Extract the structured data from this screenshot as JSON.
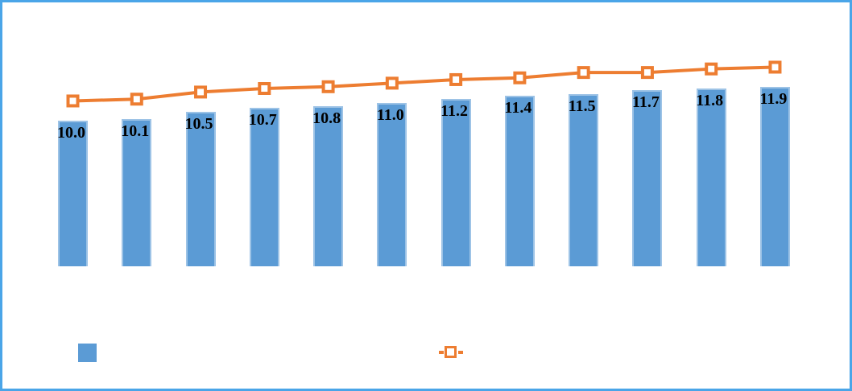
{
  "frame": {
    "background": "#ffffff",
    "border_color": "#4aa5e8"
  },
  "chart_data": {
    "type": "bar",
    "subtype": "bar-with-line-overlay",
    "title": "",
    "xlabel": "",
    "ylabel": "",
    "axes_visible": false,
    "gridlines": false,
    "category_labels_visible": false,
    "categories": [
      "",
      "",
      "",
      "",
      "",
      "",
      "",
      "",
      "",
      "",
      "",
      ""
    ],
    "series": [
      {
        "name": "bar-series",
        "type": "bar",
        "color": "#5b9bd5",
        "border_color": "#9dc3e6",
        "values": [
          10.0,
          10.1,
          10.5,
          10.7,
          10.8,
          11.0,
          11.2,
          11.4,
          11.5,
          11.7,
          11.8,
          11.9
        ],
        "data_labels": [
          "10.0",
          "10.1",
          "10.5",
          "10.7",
          "10.8",
          "11.0",
          "11.2",
          "11.4",
          "11.5",
          "11.7",
          "11.8",
          "11.9"
        ]
      },
      {
        "name": "line-series",
        "type": "line",
        "color": "#ed7d31",
        "marker": "square-with-white-center",
        "values_estimated": [
          11.1,
          11.2,
          11.6,
          11.8,
          11.9,
          12.1,
          12.3,
          12.4,
          12.7,
          12.7,
          12.9,
          13.0
        ]
      }
    ],
    "legend": {
      "position": "bottom",
      "items": [
        {
          "icon": "blue-square-swatch",
          "color": "#5b9bd5",
          "label": ""
        },
        {
          "icon": "orange-line-square-marker-swatch",
          "color": "#ed7d31",
          "label": ""
        }
      ]
    }
  }
}
